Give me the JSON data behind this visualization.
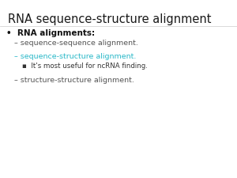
{
  "title": "RNA sequence-structure alignment",
  "title_color": "#1a1a1a",
  "title_fontsize": 10.5,
  "bg_color": "#ffffff",
  "bullet1": "RNA alignments:",
  "bullet1_color": "#111111",
  "bullet1_fontsize": 7.5,
  "item1": "– sequence-sequence alignment.",
  "item1_color": "#555555",
  "item1_fontsize": 6.8,
  "item2": "– sequence-structure alignment.",
  "item2_color": "#29b8c8",
  "item2_fontsize": 6.8,
  "sub_item": "▪  It's most useful for ncRNA finding.",
  "sub_item_color": "#333333",
  "sub_item_fontsize": 6.2,
  "item3": "– structure-structure alignment.",
  "item3_color": "#555555",
  "item3_fontsize": 6.8
}
